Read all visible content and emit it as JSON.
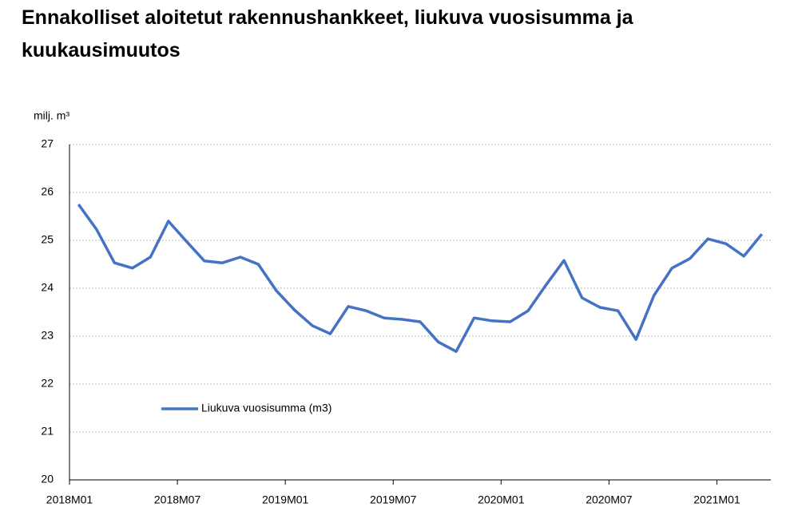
{
  "chart_data": {
    "type": "line",
    "title": "Ennakolliset aloitetut rakennushankkeet, liukuva vuosisumma ja kuukausimuutos",
    "y_label": "milj. m³",
    "categories": [
      "2018M01",
      null,
      null,
      null,
      null,
      null,
      "2018M07",
      null,
      null,
      null,
      null,
      null,
      "2019M01",
      null,
      null,
      null,
      null,
      null,
      "2019M07",
      null,
      null,
      null,
      null,
      null,
      "2020M01",
      null,
      null,
      null,
      null,
      null,
      "2020M07",
      null,
      null,
      null,
      null,
      null,
      "2021M01",
      null,
      null
    ],
    "series": [
      {
        "name": "Liukuva vuosisumma (m3)",
        "color": "#4472c4",
        "values": [
          25.75,
          25.23,
          24.53,
          24.42,
          24.65,
          25.4,
          24.98,
          24.57,
          24.53,
          24.65,
          24.5,
          23.95,
          23.55,
          23.22,
          23.05,
          23.62,
          23.53,
          23.38,
          23.35,
          23.3,
          22.88,
          22.68,
          23.38,
          23.32,
          23.3,
          23.53,
          24.07,
          24.58,
          23.8,
          23.6,
          23.53,
          22.93,
          23.85,
          24.42,
          24.62,
          25.03,
          24.93,
          24.67,
          25.13
        ]
      }
    ],
    "ylim": [
      20,
      27
    ],
    "yticks": [
      20,
      21,
      22,
      23,
      24,
      25,
      26,
      27
    ],
    "grid": true,
    "legend": "inside"
  }
}
